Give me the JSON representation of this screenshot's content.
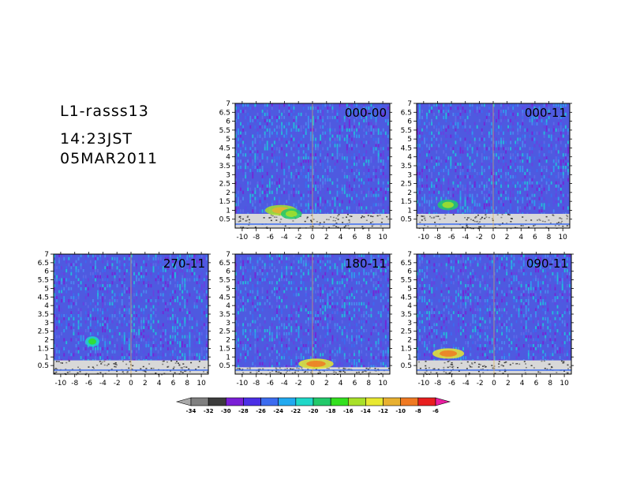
{
  "header": {
    "station": "L1-rasss13",
    "time": "14:23JST",
    "date": "05MAR2011"
  },
  "chart_data": [
    {
      "type": "heatmap",
      "panel_label": "000-00",
      "x_ticks": [
        "-10",
        "-8",
        "-6",
        "-4",
        "-2",
        "0",
        "2",
        "4",
        "6",
        "8",
        "10"
      ],
      "y_ticks": [
        "0.5",
        "1",
        "1.5",
        "2",
        "2.5",
        "3",
        "3.5",
        "4",
        "4.5",
        "5",
        "5.5",
        "6",
        "6.5",
        "7"
      ],
      "xlim": [
        -11,
        11
      ],
      "ylim": [
        0,
        7
      ],
      "features": [
        {
          "kind": "echo",
          "x": -4.5,
          "y": 1.0,
          "value": -16,
          "note_x_span": [
            -6.5,
            -2.0
          ]
        },
        {
          "kind": "echo",
          "x": -3.0,
          "y": 0.8,
          "value": -20,
          "note_x_span": [
            -4,
            -1
          ]
        }
      ],
      "lowest_range": 0.8
    },
    {
      "type": "heatmap",
      "panel_label": "000-11",
      "x_ticks": [
        "-10",
        "-8",
        "-6",
        "-4",
        "-2",
        "0",
        "2",
        "4",
        "6",
        "8",
        "10"
      ],
      "y_ticks": [
        "0.5",
        "1",
        "1.5",
        "2",
        "2.5",
        "3",
        "3.5",
        "4",
        "4.5",
        "5",
        "5.5",
        "6",
        "6.5",
        "7"
      ],
      "xlim": [
        -11,
        11
      ],
      "ylim": [
        0,
        7
      ],
      "features": [
        {
          "kind": "echo",
          "x": -6.5,
          "y": 1.3,
          "value": -20,
          "note_x_span": [
            -8,
            -5
          ]
        }
      ],
      "lowest_range": 0.8
    },
    {
      "type": "heatmap",
      "panel_label": "270-11",
      "x_ticks": [
        "-10",
        "-8",
        "-6",
        "-4",
        "-2",
        "0",
        "2",
        "4",
        "6",
        "8",
        "10"
      ],
      "y_ticks": [
        "0.5",
        "1",
        "1.5",
        "2",
        "2.5",
        "3",
        "3.5",
        "4",
        "4.5",
        "5",
        "5.5",
        "6",
        "6.5",
        "7"
      ],
      "xlim": [
        -11,
        11
      ],
      "ylim": [
        0,
        7
      ],
      "features": [
        {
          "kind": "echo",
          "x": -5.5,
          "y": 1.9,
          "value": -22,
          "note_x_span": [
            -6.5,
            -4.5
          ]
        }
      ],
      "lowest_range": 0.8
    },
    {
      "type": "heatmap",
      "panel_label": "180-11",
      "x_ticks": [
        "-10",
        "-8",
        "-6",
        "-4",
        "-2",
        "0",
        "2",
        "4",
        "6",
        "8",
        "10"
      ],
      "y_ticks": [
        "0.5",
        "1",
        "1.5",
        "2",
        "2.5",
        "3",
        "3.5",
        "4",
        "4.5",
        "5",
        "5.5",
        "6",
        "6.5",
        "7"
      ],
      "xlim": [
        -11,
        11
      ],
      "ylim": [
        0,
        7
      ],
      "features": [
        {
          "kind": "echo",
          "x": 0.5,
          "y": 0.6,
          "value": -14,
          "note_x_span": [
            -2,
            3
          ]
        }
      ],
      "lowest_range": 0.4
    },
    {
      "type": "heatmap",
      "panel_label": "090-11",
      "x_ticks": [
        "-10",
        "-8",
        "-6",
        "-4",
        "-2",
        "0",
        "2",
        "4",
        "6",
        "8",
        "10"
      ],
      "y_ticks": [
        "0.5",
        "1",
        "1.5",
        "2",
        "2.5",
        "3",
        "3.5",
        "4",
        "4.5",
        "5",
        "5.5",
        "6",
        "6.5",
        "7"
      ],
      "xlim": [
        -11,
        11
      ],
      "ylim": [
        0,
        7
      ],
      "features": [
        {
          "kind": "echo",
          "x": -6.5,
          "y": 1.2,
          "value": -14,
          "note_x_span": [
            -8.5,
            -4
          ]
        }
      ],
      "lowest_range": 0.8
    }
  ],
  "colorbar": {
    "levels": [
      "-34",
      "-32",
      "-30",
      "-28",
      "-26",
      "-24",
      "-22",
      "-20",
      "-18",
      "-16",
      "-14",
      "-12",
      "-10",
      "-8",
      "-6"
    ],
    "colors": [
      "#a9a9a9",
      "#7f7f7f",
      "#3c3c3c",
      "#7a1fd6",
      "#4b2fe6",
      "#3c6cf0",
      "#21a9f0",
      "#1fd8c8",
      "#22c96a",
      "#33e01f",
      "#a8e028",
      "#e8e830",
      "#e8b030",
      "#f07a22",
      "#e81f1f",
      "#ea1fa0"
    ]
  },
  "colors": {
    "background_noise": "#4e5ae0",
    "surface_gray": "#d8d8d8",
    "accent_vertical": "#e0b050"
  }
}
